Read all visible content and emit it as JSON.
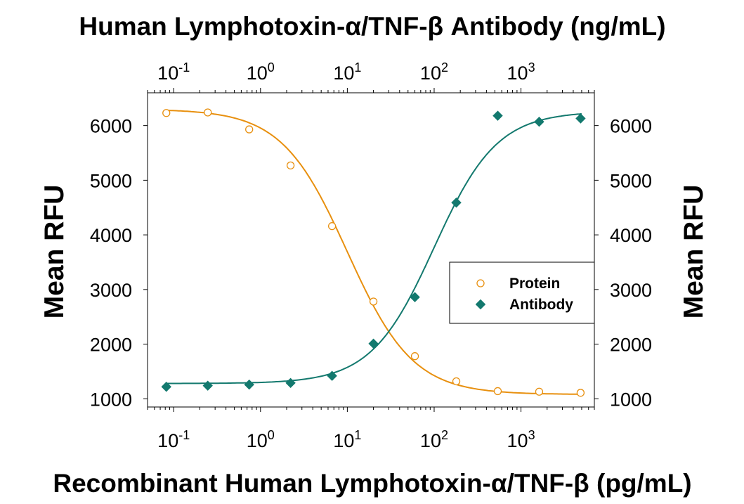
{
  "chart_data": {
    "type": "scatter",
    "title": "Human Lymphotoxin-α/TNF-β  Antibody (ng/mL)",
    "xlabel": "Recombinant Human Lymphotoxin-α/TNF-β (pg/mL)",
    "ylabel": "Mean RFU",
    "ylabel_right": "Mean RFU",
    "x_scale": "log",
    "xlim": [
      0.05,
      7000
    ],
    "ylim": [
      850,
      6600
    ],
    "x_ticks": [
      0.1,
      1,
      10,
      100,
      1000
    ],
    "x_tick_labels": [
      {
        "base": "10",
        "exp": "-1"
      },
      {
        "base": "10",
        "exp": "0"
      },
      {
        "base": "10",
        "exp": "1"
      },
      {
        "base": "10",
        "exp": "2"
      },
      {
        "base": "10",
        "exp": "3"
      }
    ],
    "y_ticks": [
      1000,
      2000,
      3000,
      4000,
      5000,
      6000
    ],
    "y_tick_labels": [
      "1000",
      "2000",
      "3000",
      "4000",
      "5000",
      "6000"
    ],
    "grid": false,
    "legend_position": "right",
    "series": [
      {
        "name": "Protein",
        "marker": "open-circle",
        "color": "#E8900F",
        "x": [
          0.0823,
          0.247,
          0.741,
          2.22,
          6.67,
          20,
          60,
          180,
          540,
          1620,
          4860
        ],
        "y": [
          6230,
          6240,
          5930,
          5270,
          4160,
          2780,
          1780,
          1320,
          1140,
          1130,
          1110
        ],
        "fit": {
          "model": "4PL",
          "bottom": 1080,
          "top": 6300,
          "ec50": 10,
          "hill": 1.15
        }
      },
      {
        "name": "Antibody",
        "marker": "filled-diamond",
        "color": "#13796E",
        "x": [
          0.0823,
          0.247,
          0.741,
          2.22,
          6.67,
          20,
          60,
          180,
          540,
          1620,
          4860
        ],
        "y": [
          1220,
          1240,
          1260,
          1290,
          1420,
          2010,
          2860,
          4590,
          6180,
          6070,
          6130
        ],
        "fit": {
          "model": "4PL",
          "bottom": 1280,
          "top": 6260,
          "ec50": 100,
          "hill": 1.2
        }
      }
    ]
  }
}
